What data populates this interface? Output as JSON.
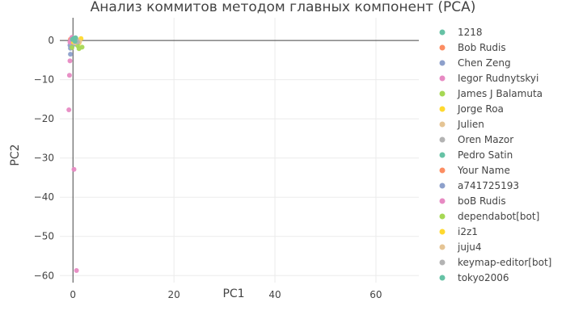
{
  "chart_data": {
    "type": "scatter",
    "title": "Анализ коммитов методом главных компонент (PCA)",
    "xlabel": "PC1",
    "ylabel": "PC2",
    "xlim": [
      -2.6,
      68.5
    ],
    "ylim": [
      -61.8,
      5.8
    ],
    "xticks": [
      0,
      20,
      40,
      60
    ],
    "yticks": [
      0,
      -10,
      -20,
      -30,
      -40,
      -50,
      -60
    ],
    "grid": true,
    "legend": "right",
    "series": [
      {
        "name": "1218",
        "color": "#66c2a5",
        "points": [
          [
            -0.4,
            0.2
          ],
          [
            -0.2,
            0.5
          ]
        ]
      },
      {
        "name": "Bob Rudis",
        "color": "#fc8d62",
        "points": [
          [
            -0.5,
            0.3
          ],
          [
            -0.3,
            -0.1
          ],
          [
            -0.1,
            0.6
          ],
          [
            0.2,
            0.4
          ],
          [
            0.5,
            0.1
          ],
          [
            -0.4,
            -0.5
          ]
        ]
      },
      {
        "name": "Chen Zeng",
        "color": "#8da0cb",
        "points": [
          [
            -0.3,
            -0.3
          ],
          [
            -0.6,
            -1.2
          ],
          [
            -0.5,
            -2.0
          ],
          [
            -0.5,
            -3.5
          ]
        ]
      },
      {
        "name": "Iegor Rudnytskyi",
        "color": "#e78ac3",
        "points": [
          [
            0.1,
            0.3
          ],
          [
            0.3,
            -0.2
          ]
        ]
      },
      {
        "name": "James J Balamuta",
        "color": "#a6d854",
        "points": [
          [
            0.4,
            0.2
          ],
          [
            0.2,
            -0.4
          ],
          [
            0.6,
            0.5
          ]
        ]
      },
      {
        "name": "Jorge Roa",
        "color": "#ffd92f",
        "points": [
          [
            0.5,
            0.4
          ],
          [
            0.8,
            -0.2
          ],
          [
            1.2,
            -0.6
          ],
          [
            1.6,
            0.5
          ]
        ]
      },
      {
        "name": "Julien",
        "color": "#e5c494",
        "points": [
          [
            0.3,
            -0.3
          ],
          [
            0.7,
            0.2
          ]
        ]
      },
      {
        "name": "Oren Mazor",
        "color": "#b3b3b3",
        "points": [
          [
            0.2,
            0.1
          ],
          [
            -0.2,
            -0.8
          ]
        ]
      },
      {
        "name": "Pedro Satin",
        "color": "#66c2a5",
        "points": [
          [
            0.4,
            -0.1
          ]
        ]
      },
      {
        "name": "Your Name",
        "color": "#fc8d62",
        "points": [
          [
            0.6,
            0.3
          ]
        ]
      },
      {
        "name": "a741725193",
        "color": "#8da0cb",
        "points": [
          [
            -0.1,
            -0.2
          ],
          [
            0.1,
            -1.0
          ]
        ]
      },
      {
        "name": "boB Rudis",
        "color": "#e78ac3",
        "points": [
          [
            -0.4,
            0.1
          ],
          [
            -0.6,
            -0.4
          ],
          [
            -0.2,
            0.8
          ],
          [
            0.0,
            0.2
          ],
          [
            -0.6,
            -5.2
          ],
          [
            -0.7,
            -8.9
          ],
          [
            -0.8,
            -17.7
          ],
          [
            0.2,
            -32.9
          ],
          [
            0.7,
            -58.7
          ]
        ]
      },
      {
        "name": "dependabot[bot]",
        "color": "#a6d854",
        "points": [
          [
            0.5,
            -0.1
          ],
          [
            0.9,
            -1.3
          ],
          [
            1.2,
            -2.1
          ],
          [
            1.8,
            -1.7
          ],
          [
            -0.2,
            -1.8
          ]
        ]
      },
      {
        "name": "i2z1",
        "color": "#ffd92f",
        "points": [
          [
            0.3,
            0.4
          ],
          [
            0.1,
            -0.5
          ]
        ]
      },
      {
        "name": "juju4",
        "color": "#e5c494",
        "points": [
          [
            0.4,
            -0.6
          ],
          [
            0.8,
            0.1
          ],
          [
            1.3,
            -0.3
          ]
        ]
      },
      {
        "name": "keymap-editor[bot]",
        "color": "#b3b3b3",
        "points": [
          [
            0.6,
            0.2
          ],
          [
            0.9,
            -0.4
          ]
        ]
      },
      {
        "name": "tokyo2006",
        "color": "#66c2a5",
        "points": [
          [
            0.2,
            0.6
          ],
          [
            -0.1,
            0.3
          ],
          [
            0.5,
            0.7
          ],
          [
            0.4,
            -0.2
          ]
        ]
      }
    ]
  }
}
